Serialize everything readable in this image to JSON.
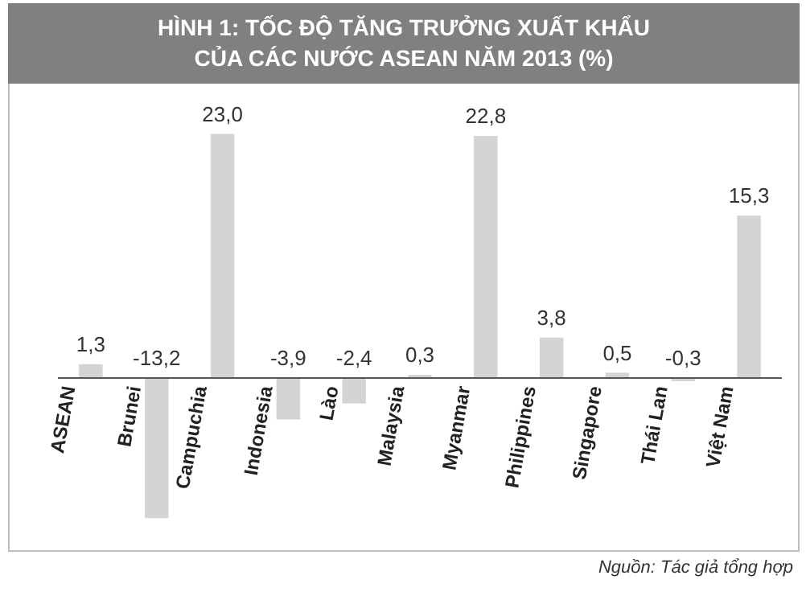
{
  "chart_data": {
    "type": "bar",
    "title": "HÌNH 1: TỐC ĐỘ TĂNG TRƯỞNG XUẤT KHẨU CỦA CÁC NƯỚC ASEAN NĂM 2013 (%)",
    "categories": [
      "ASEAN",
      "Brunei",
      "Campuchia",
      "Indonesia",
      "Lào",
      "Malaysia",
      "Myanmar",
      "Philippines",
      "Singapore",
      "Thái Lan",
      "Việt Nam"
    ],
    "values": [
      1.3,
      -13.2,
      23.0,
      -3.9,
      -2.4,
      0.3,
      22.8,
      3.8,
      0.5,
      -0.3,
      15.3
    ],
    "value_labels": [
      "1,3",
      "-13,2",
      "23,0",
      "-3,9",
      "-2,4",
      "0,3",
      "22,8",
      "3,8",
      "0,5",
      "-0,3",
      "15,3"
    ],
    "color": "#d4d4d4",
    "grid": false,
    "legend": false,
    "annotations": [
      "Nguồn: Tác giả tổng hợp"
    ]
  }
}
